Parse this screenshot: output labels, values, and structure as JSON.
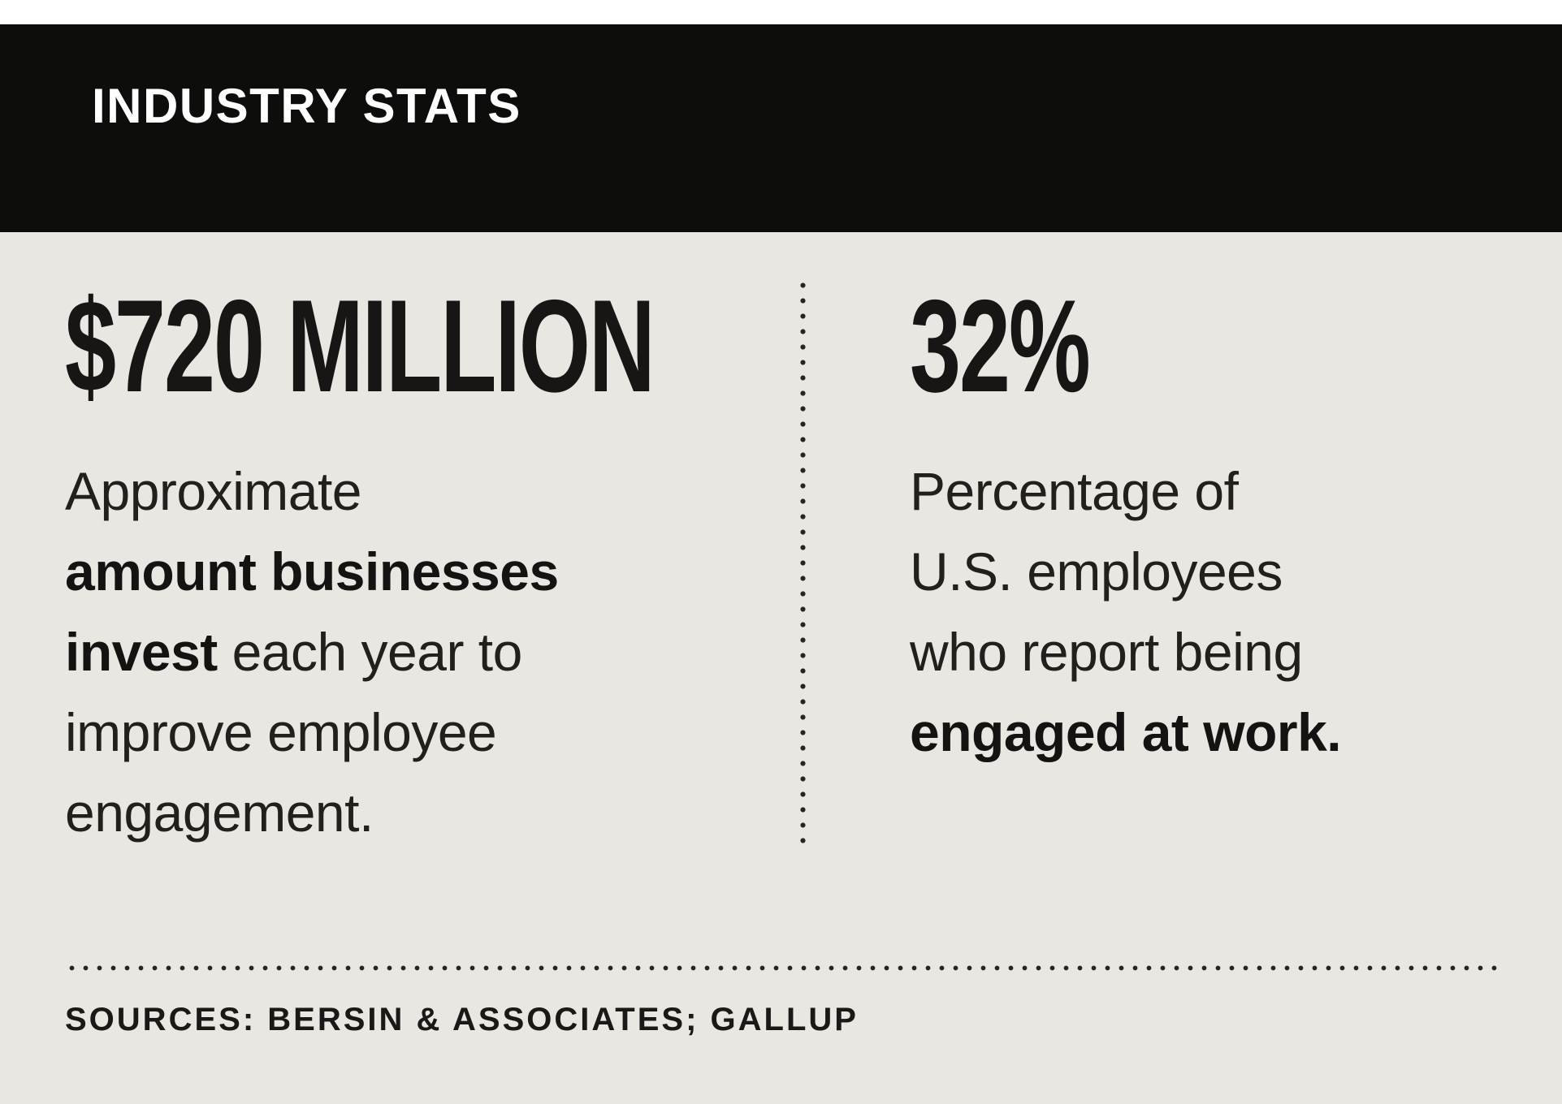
{
  "header": {
    "title": "INDUSTRY STATS"
  },
  "colors": {
    "band": "#0d0d0c",
    "background": "#e9e7e1",
    "text": "#1e1c19",
    "title_text": "#ffffff"
  },
  "stats": [
    {
      "value": "$720 MILLION",
      "lines": [
        [
          {
            "t": "Approximate",
            "b": false
          }
        ],
        [
          {
            "t": "amount businesses",
            "b": true
          }
        ],
        [
          {
            "t": "invest",
            "b": true
          },
          {
            "t": " each year to",
            "b": false
          }
        ],
        [
          {
            "t": "improve employee",
            "b": false
          }
        ],
        [
          {
            "t": "engagement.",
            "b": false
          }
        ]
      ]
    },
    {
      "value": "32%",
      "lines": [
        [
          {
            "t": "Percentage of",
            "b": false
          }
        ],
        [
          {
            "t": "U.S. employees",
            "b": false
          }
        ],
        [
          {
            "t": "who report being",
            "b": false
          }
        ],
        [
          {
            "t": "engaged at work.",
            "b": true
          }
        ]
      ]
    }
  ],
  "sources": "SOURCES: BERSIN & ASSOCIATES; GALLUP"
}
